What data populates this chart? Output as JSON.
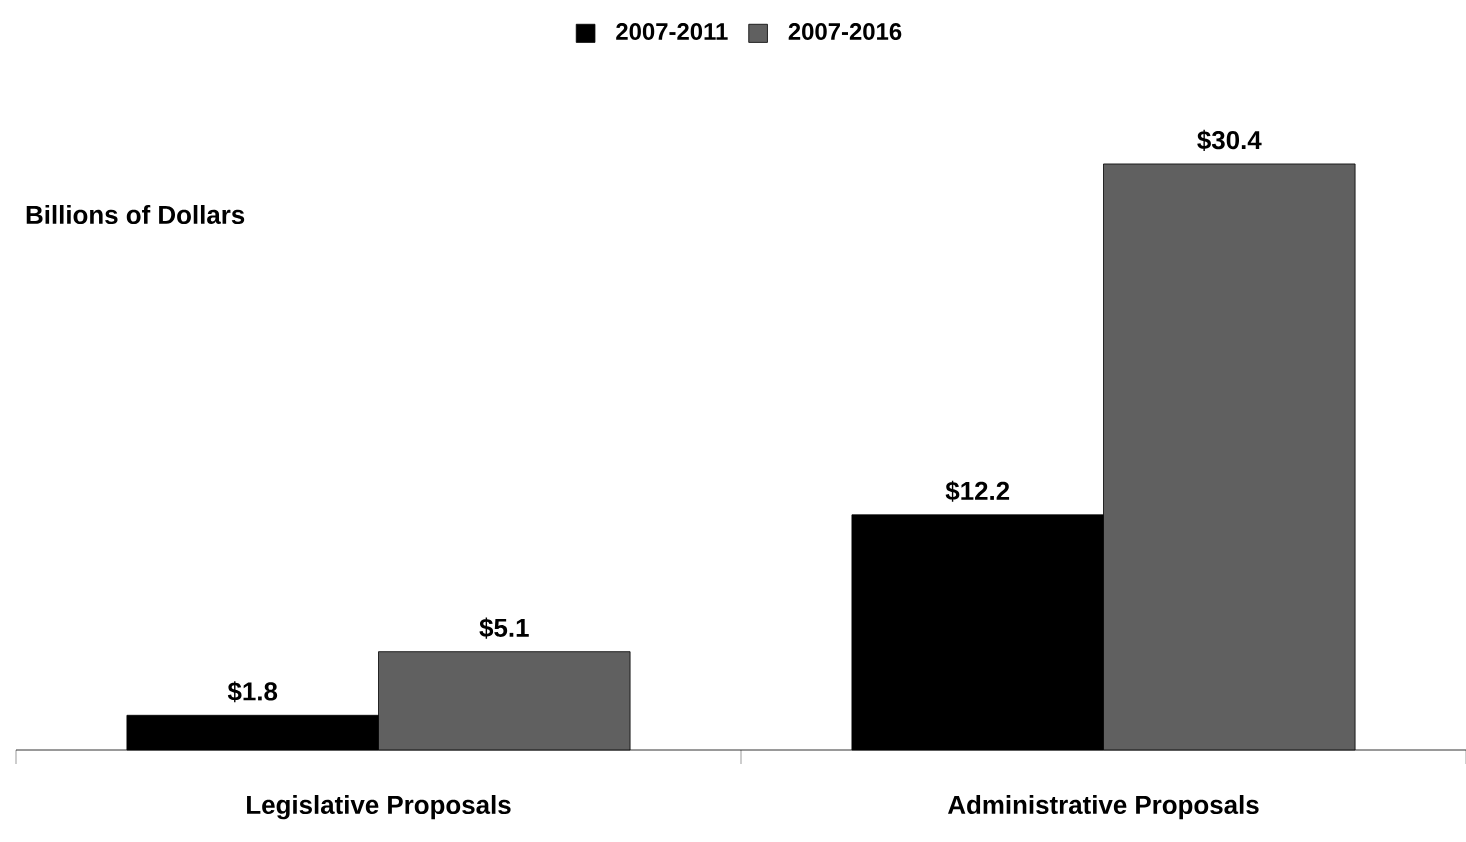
{
  "chart_data": {
    "type": "bar",
    "ylabel": "Billions of Dollars",
    "categories": [
      "Legislative Proposals",
      "Administrative Proposals"
    ],
    "series": [
      {
        "name": "2007-2011",
        "color": "#000000",
        "values": [
          1.8,
          12.2
        ],
        "value_labels": [
          "$1.8",
          "$12.2"
        ]
      },
      {
        "name": "2007-2016",
        "color": "#606060",
        "values": [
          5.1,
          30.4
        ],
        "value_labels": [
          "$5.1",
          "$30.4"
        ]
      }
    ],
    "legend": "top"
  }
}
